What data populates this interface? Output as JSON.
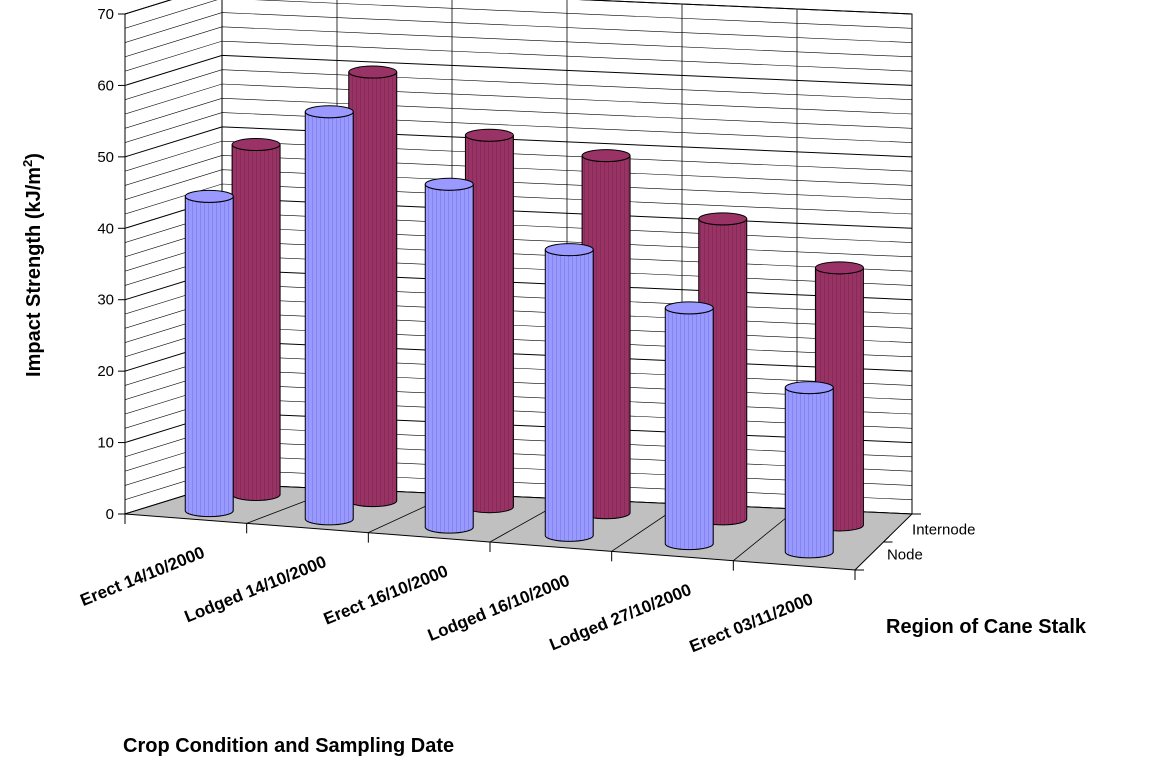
{
  "chart_data": {
    "type": "bar",
    "style": "3d-cylinder",
    "categories": [
      "Erect 14/10/2000",
      "Lodged 14/10/2000",
      "Erect 16/10/2000",
      "Lodged 16/10/2000",
      "Lodged 27/10/2000",
      "Erect 03/11/2000"
    ],
    "series": [
      {
        "name": "Node",
        "values": [
          44,
          57,
          48,
          40,
          33,
          23
        ],
        "color": "#9999ff"
      },
      {
        "name": "Internode",
        "values": [
          49,
          60,
          52,
          50,
          42,
          36
        ],
        "color": "#993366"
      }
    ],
    "xlabel": "Crop Condition and Sampling Date",
    "ylabel_main": "Impact Strength (kJ/m",
    "ylabel_sup": "2",
    "ylabel_close": ")",
    "zlabel": "Region of Cane Stalk",
    "ylim": [
      0,
      70
    ],
    "yticks": [
      "0",
      "10",
      "20",
      "30",
      "40",
      "50",
      "60",
      "70"
    ],
    "grid": true,
    "floor_color": "#c0c0c0"
  }
}
